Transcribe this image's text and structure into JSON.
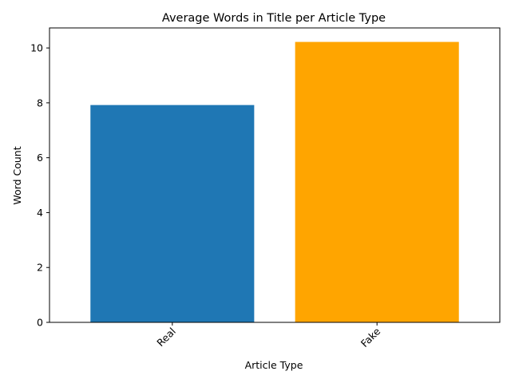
{
  "chart_data": {
    "type": "bar",
    "title": "Average Words in Title per Article Type",
    "xlabel": "Article Type",
    "ylabel": "Word Count",
    "categories": [
      "Real",
      "Fake"
    ],
    "values": [
      7.92,
      10.22
    ],
    "colors": [
      "#1f77b4",
      "#ffa500"
    ],
    "ylim": [
      0,
      10.73
    ],
    "yticks": [
      0,
      2,
      4,
      6,
      8,
      10
    ],
    "grid": false,
    "legend": "none"
  }
}
